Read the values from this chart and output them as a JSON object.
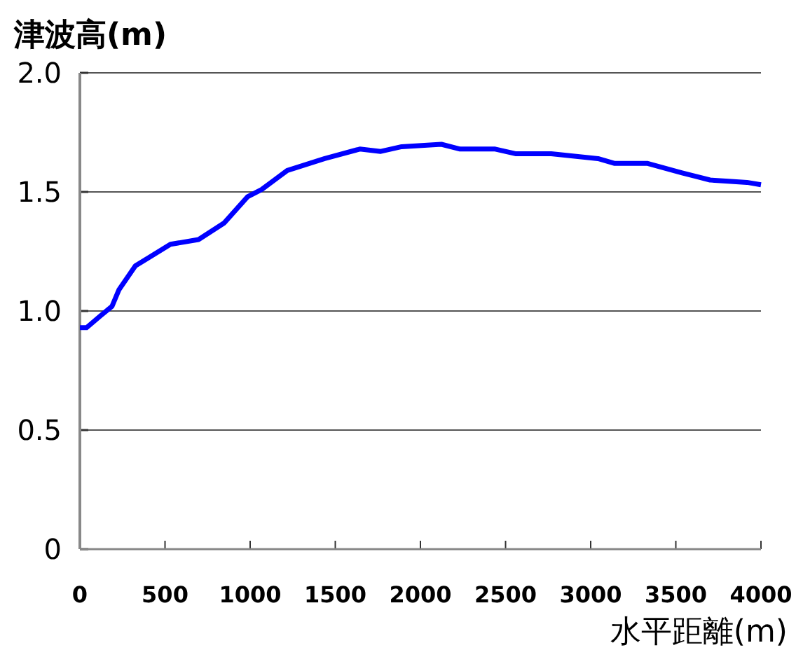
{
  "chart_data": {
    "type": "line",
    "ylabel": "津波高(m)",
    "xlabel": "水平距離(m)",
    "series": [
      {
        "color": "#0000ff",
        "x": [
          0,
          39,
          121,
          189,
          230,
          326,
          395,
          532,
          697,
          848,
          985,
          1067,
          1218,
          1438,
          1644,
          1767,
          1890,
          2123,
          2233,
          2439,
          2562,
          2768,
          3043,
          3138,
          3331,
          3537,
          3701,
          3918,
          4000
        ],
        "values": [
          0.93,
          0.93,
          0.98,
          1.02,
          1.09,
          1.19,
          1.22,
          1.28,
          1.3,
          1.37,
          1.48,
          1.51,
          1.59,
          1.64,
          1.68,
          1.67,
          1.69,
          1.7,
          1.68,
          1.68,
          1.66,
          1.66,
          1.64,
          1.62,
          1.62,
          1.58,
          1.55,
          1.54,
          1.53
        ]
      }
    ],
    "xlim": [
      0,
      4000
    ],
    "ylim": [
      0,
      2
    ],
    "xticks": [
      0,
      500,
      1000,
      1500,
      2000,
      2500,
      3000,
      3500,
      4000
    ],
    "yticks": [
      0,
      {
        "value": 0.5,
        "label": "0.5"
      },
      {
        "value": 1,
        "label": "1.0"
      },
      {
        "value": 1.5,
        "label": "1.5"
      },
      {
        "value": 2,
        "label": "2.0"
      }
    ],
    "grid": "y",
    "line_style": "solid"
  }
}
